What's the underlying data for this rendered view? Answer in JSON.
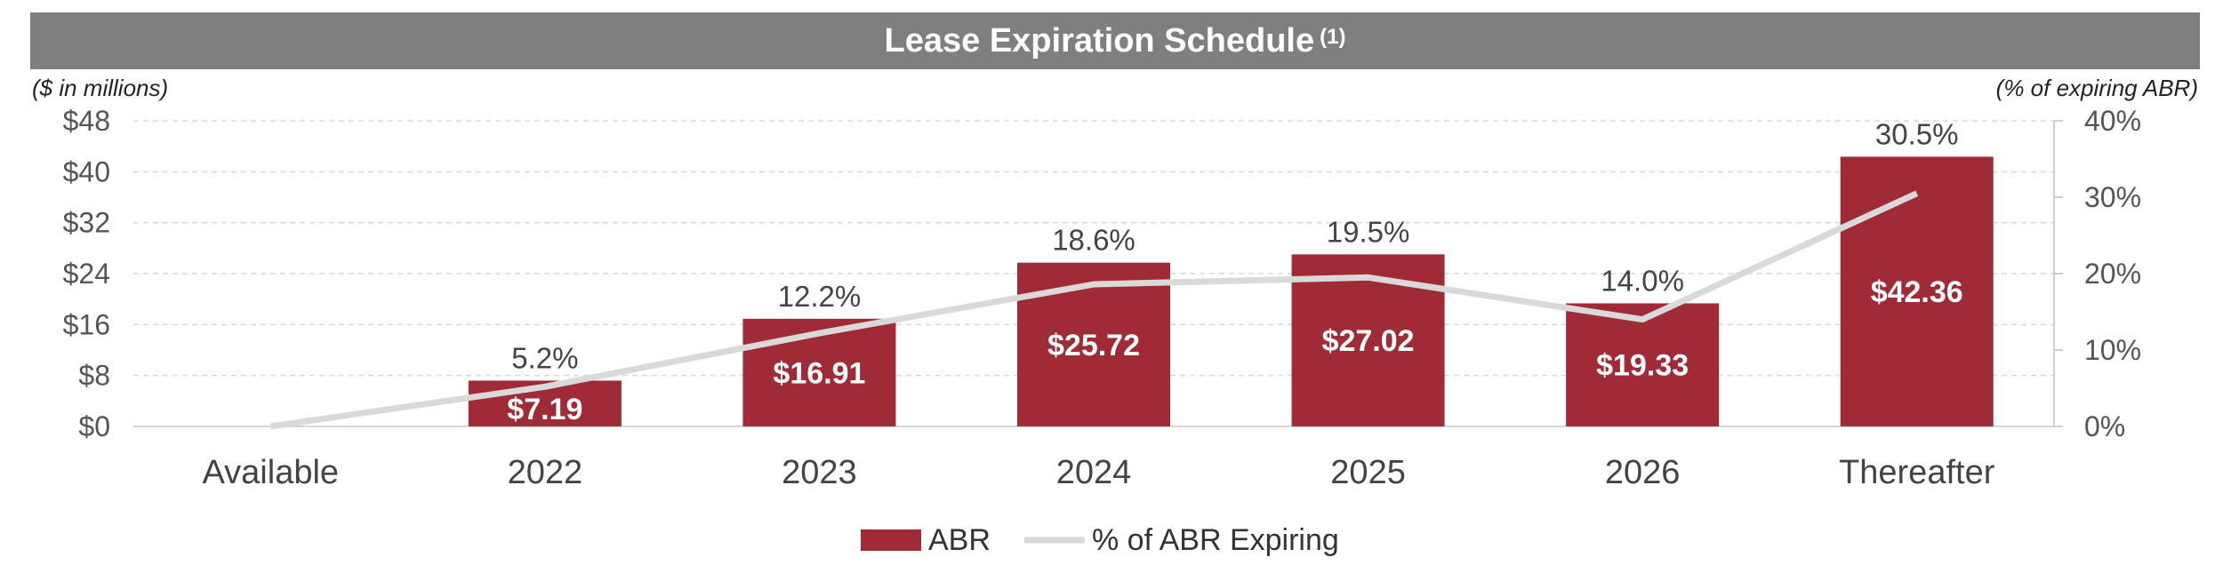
{
  "chart_data": {
    "type": "bar",
    "title": "Lease Expiration Schedule",
    "title_superscript": "(1)",
    "y_left_label": "($ in millions)",
    "y_right_label": "(% of expiring ABR)",
    "categories": [
      "Available",
      "2022",
      "2023",
      "2024",
      "2025",
      "2026",
      "Thereafter"
    ],
    "series": [
      {
        "name": "ABR",
        "type": "bar",
        "axis": "left",
        "values": [
          0,
          7.19,
          16.91,
          25.72,
          27.02,
          19.33,
          42.36
        ],
        "labels": [
          "",
          "$7.19",
          "$16.91",
          "$25.72",
          "$27.02",
          "$19.33",
          "$42.36"
        ],
        "color": "#a12a37"
      },
      {
        "name": "% of ABR Expiring",
        "type": "line",
        "axis": "right",
        "values": [
          0,
          5.2,
          12.2,
          18.6,
          19.5,
          14.0,
          30.5
        ],
        "labels": [
          "",
          "5.2%",
          "12.2%",
          "18.6%",
          "19.5%",
          "14.0%",
          "30.5%"
        ],
        "color": "#d9d9d9"
      }
    ],
    "y_left": {
      "ylim": [
        0,
        48
      ],
      "ticks": [
        0,
        8,
        16,
        24,
        32,
        40,
        48
      ],
      "tick_labels": [
        "$0",
        "$8",
        "$16",
        "$24",
        "$32",
        "$40",
        "$48"
      ]
    },
    "y_right": {
      "ylim": [
        0,
        40
      ],
      "ticks": [
        0,
        10,
        20,
        30,
        40
      ],
      "tick_labels": [
        "0%",
        "10%",
        "20%",
        "30%",
        "40%"
      ]
    },
    "grid": true,
    "legend": {
      "position": "bottom",
      "entries": [
        "ABR",
        "% of ABR Expiring"
      ]
    }
  }
}
